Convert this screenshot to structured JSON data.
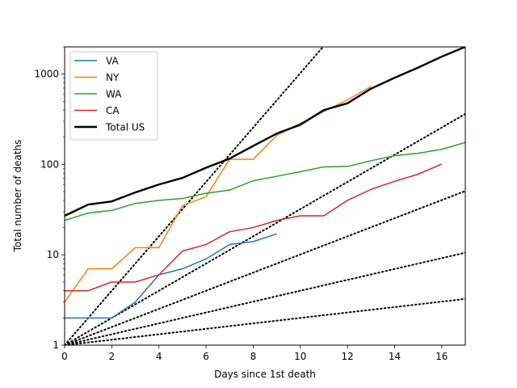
{
  "chart_data": {
    "type": "line",
    "xlabel": "Days since 1st death",
    "ylabel": "Total number of deaths",
    "xlim": [
      0,
      17
    ],
    "ylim": [
      1,
      2000
    ],
    "yscale": "log",
    "xticks": [
      0,
      2,
      4,
      6,
      8,
      10,
      12,
      14,
      16
    ],
    "yticks": [
      1,
      10,
      100,
      1000
    ],
    "grid": false,
    "legend_position": "upper-left",
    "series": [
      {
        "name": "VA",
        "color": "#1f77b4",
        "x": [
          0,
          1,
          2,
          3,
          4,
          5,
          6,
          7,
          8,
          9
        ],
        "y": [
          2,
          2,
          2,
          3,
          6,
          7,
          9,
          13,
          14,
          17
        ]
      },
      {
        "name": "NY",
        "color": "#ff7f0e",
        "x": [
          0,
          1,
          2,
          3,
          4,
          5,
          6,
          7,
          8,
          9,
          10,
          11,
          12,
          13
        ],
        "y": [
          3,
          7,
          7,
          12,
          12,
          35,
          44,
          114,
          114,
          210,
          285,
          385,
          519,
          728
        ]
      },
      {
        "name": "WA",
        "color": "#2ca02c",
        "x": [
          0,
          1,
          2,
          3,
          4,
          5,
          6,
          7,
          8,
          9,
          10,
          11,
          12,
          13,
          14,
          15,
          16,
          17
        ],
        "y": [
          24,
          29,
          31,
          37,
          40,
          42,
          48,
          52,
          66,
          74,
          83,
          94,
          95,
          110,
          125,
          133,
          147,
          175
        ]
      },
      {
        "name": "CA",
        "color": "#d62728",
        "x": [
          0,
          1,
          2,
          3,
          4,
          5,
          6,
          7,
          8,
          9,
          10,
          11,
          12,
          13,
          14,
          15,
          16
        ],
        "y": [
          4,
          4,
          5,
          5,
          6,
          11,
          13,
          18,
          20,
          24,
          27,
          27,
          40,
          53,
          65,
          78,
          101
        ]
      },
      {
        "name": "Total US",
        "color": "#000000",
        "x": [
          0,
          1,
          2,
          3,
          4,
          5,
          6,
          7,
          8,
          9,
          10,
          11,
          12,
          13,
          14,
          15,
          16,
          17
        ],
        "y": [
          27,
          36,
          39,
          49,
          60,
          71,
          92,
          116,
          160,
          220,
          275,
          400,
          475,
          690,
          910,
          1180,
          1560,
          2000
        ]
      }
    ],
    "reference_lines": [
      {
        "label": "doubling every 1 day",
        "doubling_days": 1
      },
      {
        "label": "doubling every 2 days",
        "doubling_days": 2
      },
      {
        "label": "doubling every 3 days",
        "doubling_days": 3
      },
      {
        "label": "doubling every 5 days",
        "doubling_days": 5
      },
      {
        "label": "doubling every 10 days",
        "doubling_days": 10
      }
    ]
  }
}
